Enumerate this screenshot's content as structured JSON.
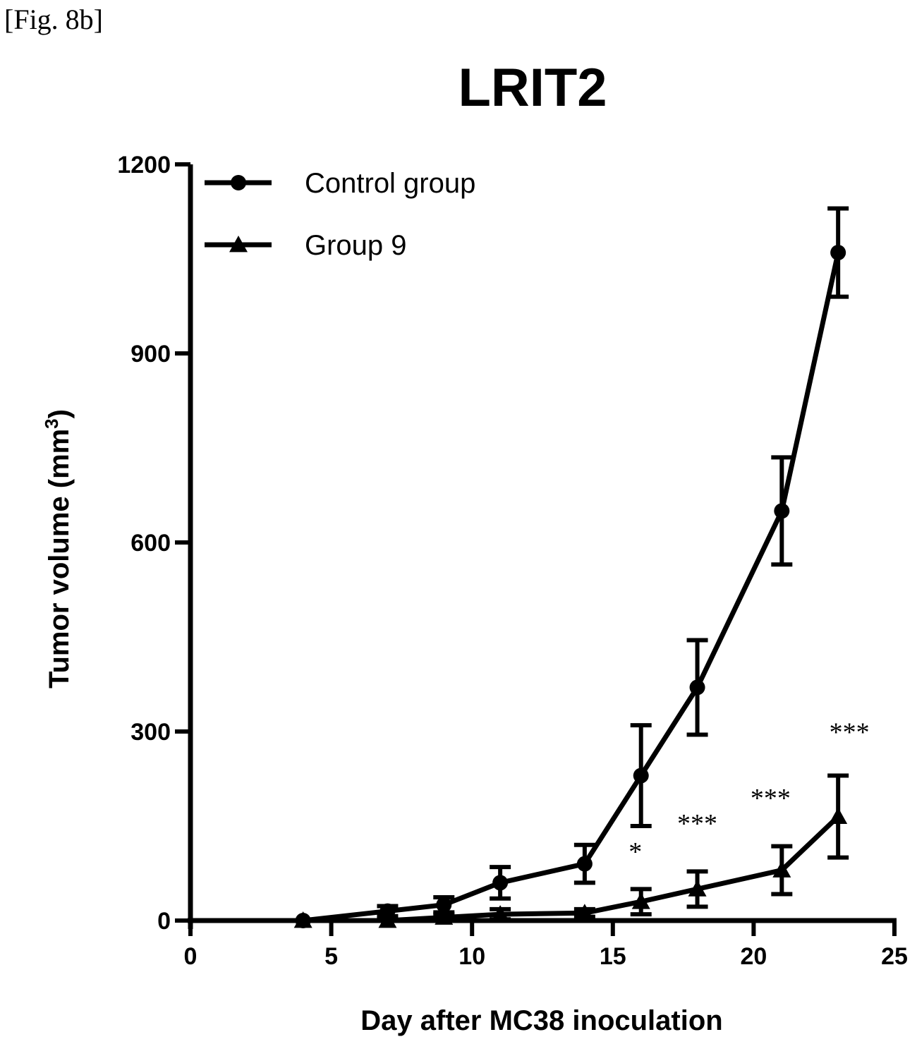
{
  "figure_label": "[Fig. 8b]",
  "chart_data": {
    "type": "line",
    "title": "LRIT2",
    "xlabel": "Day after MC38 inoculation",
    "ylabel": "Tumor volume (mm",
    "ylabel_superscript": "3",
    "ylabel_suffix": ")",
    "xlim": [
      0,
      25
    ],
    "ylim": [
      0,
      1200
    ],
    "xticks": [
      0,
      5,
      10,
      15,
      20,
      25
    ],
    "yticks": [
      0,
      300,
      600,
      900,
      1200
    ],
    "legend_position": "top-left",
    "grid": false,
    "series": [
      {
        "name": "Control group",
        "marker": "circle",
        "x": [
          4,
          7,
          9,
          11,
          14,
          16,
          18,
          21,
          23
        ],
        "y": [
          0,
          15,
          25,
          60,
          90,
          230,
          370,
          650,
          1060
        ],
        "err": [
          0,
          8,
          12,
          25,
          30,
          80,
          75,
          85,
          70
        ]
      },
      {
        "name": "Group 9",
        "marker": "triangle",
        "x": [
          4,
          7,
          9,
          11,
          14,
          16,
          18,
          21,
          23
        ],
        "y": [
          0,
          0,
          5,
          10,
          12,
          30,
          50,
          80,
          165
        ],
        "err": [
          0,
          3,
          5,
          8,
          6,
          20,
          28,
          38,
          65
        ]
      }
    ],
    "annotations": [
      {
        "text": "*",
        "x": 15.8,
        "y": 95
      },
      {
        "text": "***",
        "x": 18,
        "y": 140
      },
      {
        "text": "***",
        "x": 20.6,
        "y": 180
      },
      {
        "text": "***",
        "x": 23.4,
        "y": 285
      }
    ]
  }
}
